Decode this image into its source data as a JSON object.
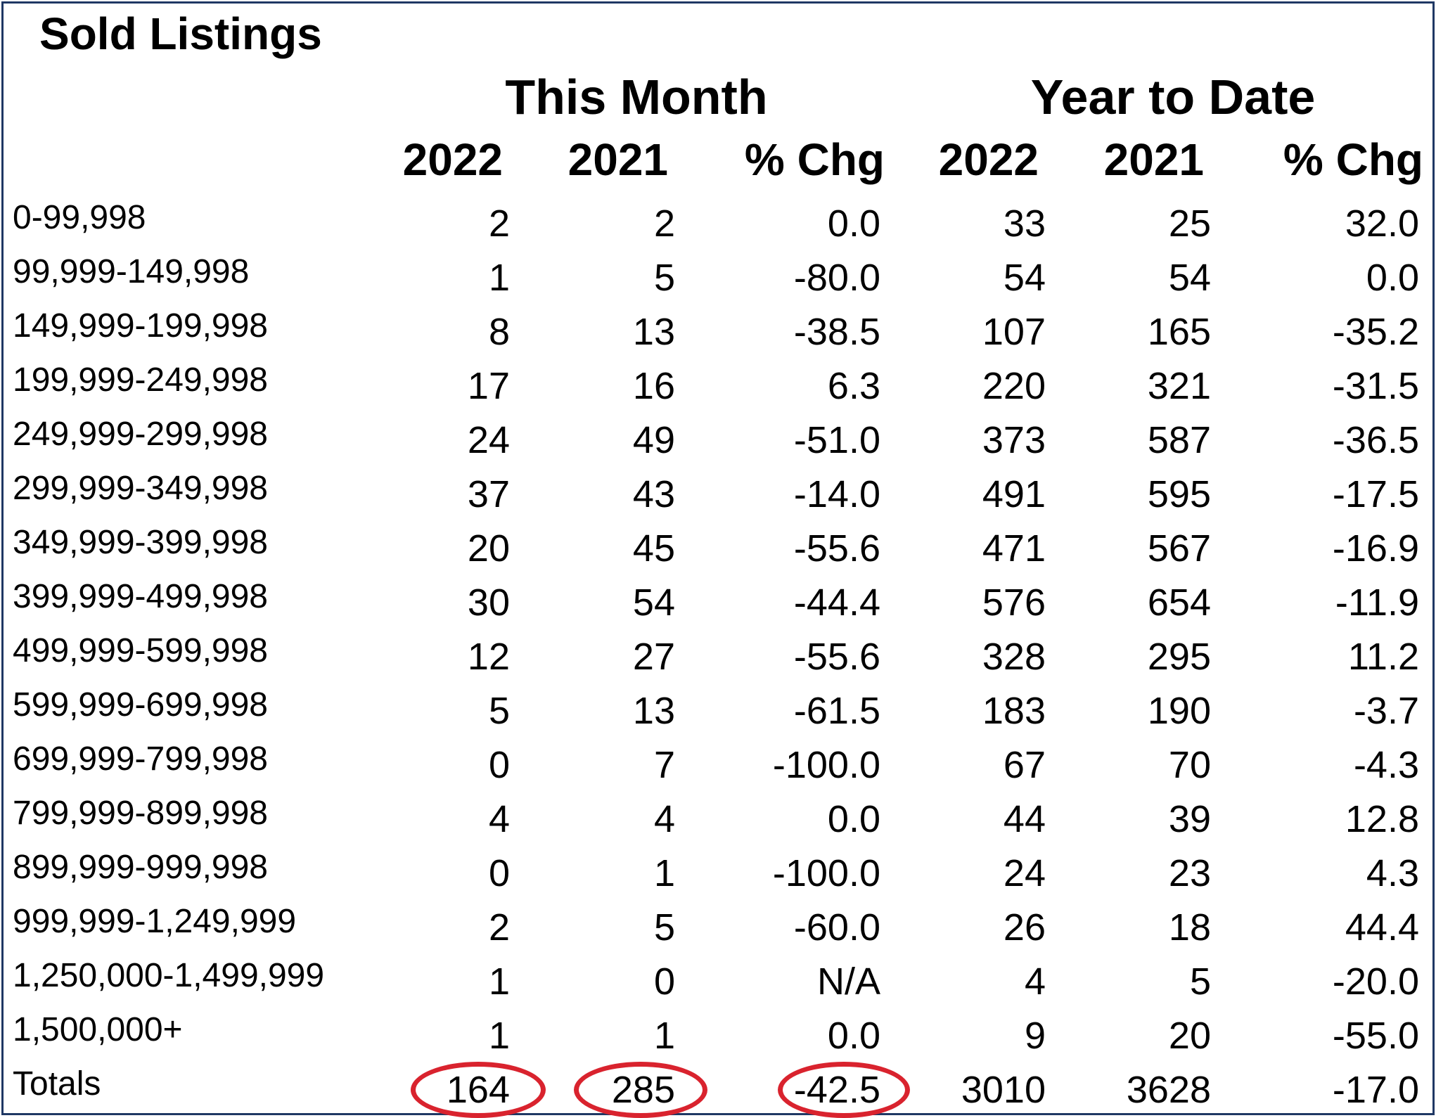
{
  "title": "Sold Listings",
  "groups": {
    "this_month": "This Month",
    "year_to_date": "Year to Date"
  },
  "columns": [
    "2022",
    "2021",
    "% Chg",
    "2022",
    "2021",
    "% Chg"
  ],
  "rows": [
    {
      "label": "0-99,998",
      "values": [
        "2",
        "2",
        "0.0",
        "33",
        "25",
        "32.0"
      ]
    },
    {
      "label": "99,999-149,998",
      "values": [
        "1",
        "5",
        "-80.0",
        "54",
        "54",
        "0.0"
      ]
    },
    {
      "label": "149,999-199,998",
      "values": [
        "8",
        "13",
        "-38.5",
        "107",
        "165",
        "-35.2"
      ]
    },
    {
      "label": "199,999-249,998",
      "values": [
        "17",
        "16",
        "6.3",
        "220",
        "321",
        "-31.5"
      ]
    },
    {
      "label": "249,999-299,998",
      "values": [
        "24",
        "49",
        "-51.0",
        "373",
        "587",
        "-36.5"
      ]
    },
    {
      "label": "299,999-349,998",
      "values": [
        "37",
        "43",
        "-14.0",
        "491",
        "595",
        "-17.5"
      ]
    },
    {
      "label": "349,999-399,998",
      "values": [
        "20",
        "45",
        "-55.6",
        "471",
        "567",
        "-16.9"
      ]
    },
    {
      "label": "399,999-499,998",
      "values": [
        "30",
        "54",
        "-44.4",
        "576",
        "654",
        "-11.9"
      ]
    },
    {
      "label": "499,999-599,998",
      "values": [
        "12",
        "27",
        "-55.6",
        "328",
        "295",
        "11.2"
      ]
    },
    {
      "label": "599,999-699,998",
      "values": [
        "5",
        "13",
        "-61.5",
        "183",
        "190",
        "-3.7"
      ]
    },
    {
      "label": "699,999-799,998",
      "values": [
        "0",
        "7",
        "-100.0",
        "67",
        "70",
        "-4.3"
      ]
    },
    {
      "label": "799,999-899,998",
      "values": [
        "4",
        "4",
        "0.0",
        "44",
        "39",
        "12.8"
      ]
    },
    {
      "label": "899,999-999,998",
      "values": [
        "0",
        "1",
        "-100.0",
        "24",
        "23",
        "4.3"
      ]
    },
    {
      "label": "999,999-1,249,999",
      "values": [
        "2",
        "5",
        "-60.0",
        "26",
        "18",
        "44.4"
      ]
    },
    {
      "label": "1,250,000-1,499,999",
      "values": [
        "1",
        "0",
        "N/A",
        "4",
        "5",
        "-20.0"
      ]
    },
    {
      "label": "1,500,000+",
      "values": [
        "1",
        "1",
        "0.0",
        "9",
        "20",
        "-55.0"
      ]
    }
  ],
  "totals": {
    "label": "Totals",
    "values": [
      "164",
      "285",
      "-42.5",
      "3010",
      "3628",
      "-17.0"
    ],
    "highlighted_columns": [
      0,
      1,
      2
    ]
  },
  "colors": {
    "border": "#1f3864",
    "highlight": "#d9232e",
    "text": "#000000"
  }
}
